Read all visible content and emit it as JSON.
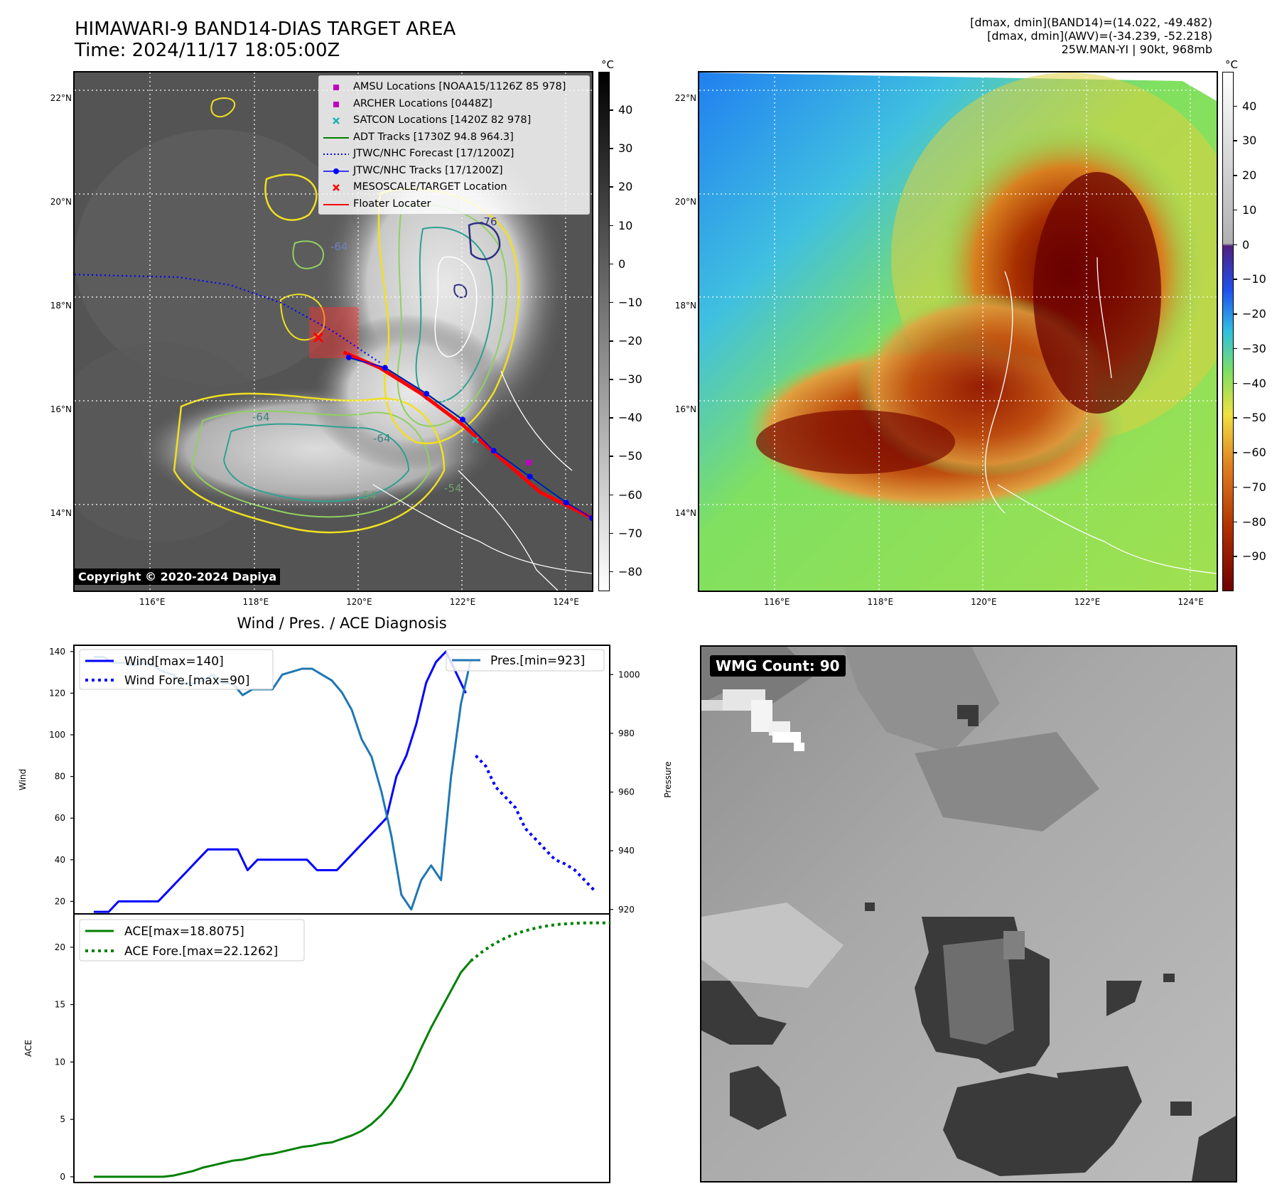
{
  "header": {
    "title_line1": "HIMAWARI-9 BAND14-DIAS TARGET AREA",
    "title_line2": "Time: 2024/11/17 18:05:00Z",
    "info_line1": "[dmax, dmin](BAND14)=(14.022, -49.482)",
    "info_line2": "[dmax, dmin](AWV)=(-34.239, -52.218)",
    "info_line3": "25W.MAN-YI | 90kt, 968mb"
  },
  "map_axes": {
    "lat_labels": [
      "22°N",
      "20°N",
      "18°N",
      "16°N",
      "14°N"
    ],
    "lat_values": [
      22,
      20,
      18,
      16,
      14
    ],
    "lon_labels": [
      "116°E",
      "118°E",
      "120°E",
      "122°E",
      "124°E"
    ],
    "lon_values": [
      116,
      118,
      120,
      122,
      124
    ],
    "lat_range": [
      12.5,
      22.5
    ],
    "lon_range": [
      114.5,
      124.5
    ]
  },
  "ir_panel": {
    "copyright": "Copyright © 2020-2024 Dapiya",
    "colorbar_unit": "°C",
    "colorbar_ticks": [
      "40",
      "30",
      "20",
      "10",
      "0",
      "−10",
      "−20",
      "−30",
      "−40",
      "−50",
      "−60",
      "−70",
      "−80"
    ],
    "colorbar_values": [
      40,
      30,
      20,
      10,
      0,
      -10,
      -20,
      -30,
      -40,
      -50,
      -60,
      -70,
      -80
    ],
    "colorbar_range": [
      -85,
      50
    ],
    "contour_labels": [
      "-64",
      "-76",
      "-64",
      "-64",
      "-54",
      "-54"
    ],
    "legend": [
      {
        "label": "AMSU Locations [NOAA15/1126Z 85 978]",
        "marker": "square",
        "color": "#c000c0"
      },
      {
        "label": "ARCHER Locations [0448Z]",
        "marker": "square",
        "color": "#c000c0"
      },
      {
        "label": "SATCON Locations [1420Z 82 978]",
        "marker": "x",
        "color": "#20b0b0"
      },
      {
        "label": "ADT Tracks [1730Z 94.8 964.3]",
        "marker": "line",
        "color": "#008000"
      },
      {
        "label": "JTWC/NHC Forecast [17/1200Z]",
        "marker": "dotted",
        "color": "#0000ff"
      },
      {
        "label": "JTWC/NHC Tracks [17/1200Z]",
        "marker": "line-dot",
        "color": "#0000ff"
      },
      {
        "label": "MESOSCALE/TARGET Location",
        "marker": "x",
        "color": "#ff0000"
      },
      {
        "label": "Floater Locater",
        "marker": "line",
        "color": "#ff0000"
      }
    ],
    "forecast_track": [
      [
        114.5,
        18.6
      ],
      [
        116.5,
        18.55
      ],
      [
        117.5,
        18.4
      ],
      [
        118.5,
        18.05
      ],
      [
        119.5,
        17.5
      ],
      [
        120.4,
        16.9
      ]
    ],
    "best_track": [
      [
        119.8,
        17.0
      ],
      [
        120.5,
        16.8
      ],
      [
        121.3,
        16.3
      ],
      [
        122.0,
        15.8
      ],
      [
        122.6,
        15.2
      ],
      [
        123.3,
        14.7
      ],
      [
        124.0,
        14.2
      ],
      [
        124.5,
        13.9
      ]
    ],
    "floater_track": [
      [
        119.7,
        17.1
      ],
      [
        120.4,
        16.8
      ],
      [
        121.2,
        16.3
      ],
      [
        122.0,
        15.7
      ],
      [
        122.8,
        15.0
      ],
      [
        123.5,
        14.4
      ],
      [
        124.5,
        13.9
      ]
    ]
  },
  "awv_panel": {
    "colorbar_unit": "°C",
    "colorbar_ticks": [
      "40",
      "30",
      "20",
      "10",
      "0",
      "−10",
      "−20",
      "−30",
      "−40",
      "−50",
      "−60",
      "−70",
      "−80",
      "−90"
    ],
    "colorbar_values": [
      40,
      30,
      20,
      10,
      0,
      -10,
      -20,
      -30,
      -40,
      -50,
      -60,
      -70,
      -80,
      -90
    ],
    "colorbar_range": [
      -100,
      50
    ]
  },
  "diagnosis": {
    "title": "Wind / Pres. / ACE Diagnosis",
    "wind_ylabel": "Wind",
    "pressure_ylabel": "Pressure",
    "ace_ylabel": "ACE",
    "wind_ticks": [
      "20",
      "40",
      "60",
      "80",
      "100",
      "120",
      "140"
    ],
    "pressure_ticks": [
      "920",
      "940",
      "960",
      "980",
      "1000"
    ],
    "ace_ticks": [
      "0",
      "5",
      "10",
      "15",
      "20"
    ],
    "legend_wind": "Wind[max=140]",
    "legend_wind_fore": "Wind Fore.[max=90]",
    "legend_pres": "Pres.[min=923]",
    "legend_ace": "ACE[max=18.8075]",
    "legend_ace_fore": "ACE Fore.[max=22.1262]"
  },
  "chart_data": {
    "type": "line",
    "title": "Wind / Pres. / ACE Diagnosis",
    "x_range": [
      -2,
      52
    ],
    "wind_ylim": [
      14,
      143
    ],
    "pres_ylim": [
      918.5,
      1010
    ],
    "ace_ylim": [
      -0.5,
      22.9
    ],
    "series": [
      {
        "name": "Wind[max=140]",
        "axis": "wind",
        "color": "#0000ff",
        "style": "solid",
        "x": [
          0,
          1.5,
          2.5,
          3.5,
          4.5,
          5.5,
          6.5,
          7.5,
          8.5,
          9.5,
          10.5,
          11.5,
          12.5,
          13.5,
          14.5,
          15.5,
          16.5,
          17.5,
          18.5,
          19.5,
          20.5,
          21.5,
          22.5,
          23.5,
          24.5,
          25.5,
          26.5,
          27.5,
          28.5,
          29.5,
          30.5,
          31.5,
          32.5,
          33.5,
          34.5,
          35.5,
          36.5,
          37.5
        ],
        "values": [
          15,
          15,
          20,
          20,
          20,
          20,
          20,
          25,
          30,
          35,
          40,
          45,
          45,
          45,
          45,
          35,
          40,
          40,
          40,
          40,
          40,
          40,
          35,
          35,
          35,
          40,
          45,
          50,
          55,
          60,
          80,
          90,
          105,
          125,
          135,
          140,
          130,
          120
        ]
      },
      {
        "name": "Wind Fore.[max=90]",
        "axis": "wind",
        "color": "#0000ff",
        "style": "dotted",
        "x": [
          38.5,
          39.5,
          40.5,
          41.5,
          42.5,
          43.5,
          44.5,
          45.5,
          46.5,
          47.5,
          48.5,
          49.5,
          50.5
        ],
        "values": [
          90,
          85,
          75,
          70,
          65,
          55,
          50,
          45,
          40,
          38,
          35,
          30,
          25
        ]
      },
      {
        "name": "Pres.[min=923]",
        "axis": "pres",
        "color": "#1f77b4",
        "style": "solid",
        "x": [
          0,
          1,
          2,
          3,
          4,
          5,
          6,
          7,
          8,
          9,
          10,
          11,
          12,
          13,
          14,
          15,
          16,
          17,
          18,
          19,
          20,
          21,
          22,
          23,
          24,
          25,
          26,
          27,
          28,
          29,
          30,
          31,
          32,
          33,
          34,
          35,
          36,
          37,
          38
        ],
        "values": [
          1006,
          1006,
          1004,
          1004,
          1003,
          1004,
          1003,
          1001,
          1000,
          997,
          997,
          998,
          1000,
          997,
          997,
          993,
          995,
          995,
          995,
          1000,
          1001,
          1002,
          1002,
          1000,
          998,
          994,
          988,
          978,
          972,
          960,
          945,
          925,
          920,
          930,
          935,
          930,
          965,
          990,
          1005
        ]
      },
      {
        "name": "ACE[max=18.8075]",
        "axis": "ace",
        "color": "#008000",
        "style": "solid",
        "x": [
          0,
          7,
          8,
          9,
          10,
          11,
          12,
          13,
          14,
          15,
          16,
          17,
          18,
          19,
          20,
          21,
          22,
          23,
          24,
          25,
          26,
          27,
          28,
          29,
          30,
          31,
          32,
          33,
          34,
          35,
          36,
          37,
          38
        ],
        "values": [
          0,
          0,
          0.1,
          0.3,
          0.5,
          0.8,
          1.0,
          1.2,
          1.4,
          1.5,
          1.7,
          1.9,
          2.0,
          2.2,
          2.4,
          2.6,
          2.7,
          2.9,
          3.0,
          3.3,
          3.6,
          4.0,
          4.6,
          5.4,
          6.4,
          7.7,
          9.3,
          11.2,
          13.0,
          14.6,
          16.2,
          17.8,
          18.8
        ]
      },
      {
        "name": "ACE Fore.[max=22.1262]",
        "axis": "ace",
        "color": "#008000",
        "style": "dotted",
        "x": [
          38,
          39,
          40,
          41,
          42,
          43,
          44,
          45,
          46,
          47,
          48,
          49,
          50,
          51,
          52
        ],
        "values": [
          18.8,
          19.5,
          20.1,
          20.6,
          21.0,
          21.3,
          21.55,
          21.75,
          21.9,
          22.0,
          22.05,
          22.1,
          22.12,
          22.12,
          22.1
        ]
      }
    ]
  },
  "wmg_panel": {
    "label": "WMG Count: 90"
  }
}
